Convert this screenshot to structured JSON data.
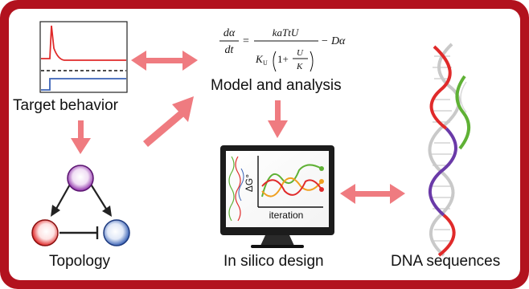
{
  "labels": {
    "target_behavior": "Target behavior",
    "model_analysis": "Model and analysis",
    "topology": "Topology",
    "in_silico": "In silico design",
    "dna_sequences": "DNA sequences"
  },
  "equation": {
    "lhs_num": "dα",
    "lhs_den": "dt",
    "rhs_num": "kaTtU",
    "rhs_den_K": "K",
    "rhs_den_sub": "U",
    "one_plus": "1+",
    "inner_num": "U",
    "inner_den": "K",
    "tail": "− Dα"
  },
  "monitor": {
    "y_axis": "ΔG°",
    "x_axis": "iteration"
  },
  "colors": {
    "border": "#b2121e",
    "arrow": "#ef7b80",
    "red": "#e02a2a",
    "blue": "#3b63b6",
    "purple": "#8b2aa6",
    "green": "#5fb135",
    "orange": "#f0a020"
  }
}
